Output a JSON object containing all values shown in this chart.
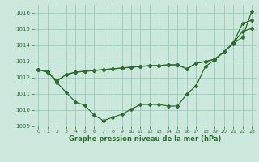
{
  "title": "Graphe pression niveau de la mer (hPa)",
  "background_color": "#cce8dc",
  "grid_color": "#99ccbb",
  "line_color": "#2d6e2d",
  "marker_color": "#2d6e2d",
  "xlim": [
    -0.5,
    23.5
  ],
  "ylim": [
    1009.0,
    1016.5
  ],
  "yticks": [
    1009,
    1010,
    1011,
    1012,
    1013,
    1014,
    1015,
    1016
  ],
  "xticks": [
    0,
    1,
    2,
    3,
    4,
    5,
    6,
    7,
    8,
    9,
    10,
    11,
    12,
    13,
    14,
    15,
    16,
    17,
    18,
    19,
    20,
    21,
    22,
    23
  ],
  "series1_x": [
    0,
    1,
    2,
    3,
    4,
    5,
    6,
    7,
    8,
    9,
    10,
    11,
    12,
    13,
    14,
    15,
    16,
    17,
    18,
    19,
    20,
    21,
    22,
    23
  ],
  "series1_y": [
    1012.5,
    1012.4,
    1011.7,
    1011.1,
    1010.5,
    1010.3,
    1009.7,
    1009.35,
    1009.55,
    1009.75,
    1010.05,
    1010.35,
    1010.35,
    1010.35,
    1010.25,
    1010.25,
    1011.0,
    1011.5,
    1012.7,
    1013.1,
    1013.6,
    1014.1,
    1014.5,
    1016.1
  ],
  "series2_x": [
    0,
    1,
    2,
    3,
    4,
    5,
    6,
    7,
    8,
    9,
    10,
    11,
    12,
    13,
    14,
    15,
    16,
    17,
    18,
    19,
    20,
    21,
    22,
    23
  ],
  "series2_y": [
    1012.5,
    1012.35,
    1011.8,
    1012.2,
    1012.35,
    1012.4,
    1012.45,
    1012.5,
    1012.55,
    1012.6,
    1012.65,
    1012.7,
    1012.75,
    1012.75,
    1012.8,
    1012.8,
    1012.55,
    1012.9,
    1013.0,
    1013.15,
    1013.6,
    1014.15,
    1014.85,
    1015.05
  ],
  "series3_x": [
    0,
    1,
    2,
    3,
    4,
    5,
    6,
    7,
    8,
    9,
    10,
    11,
    12,
    13,
    14,
    15,
    16,
    17,
    18,
    19,
    20,
    21,
    22,
    23
  ],
  "series3_y": [
    1012.5,
    1012.35,
    1011.8,
    1012.2,
    1012.35,
    1012.4,
    1012.45,
    1012.5,
    1012.55,
    1012.6,
    1012.65,
    1012.7,
    1012.75,
    1012.75,
    1012.8,
    1012.8,
    1012.55,
    1012.9,
    1013.0,
    1013.15,
    1013.6,
    1014.15,
    1015.35,
    1015.55
  ]
}
